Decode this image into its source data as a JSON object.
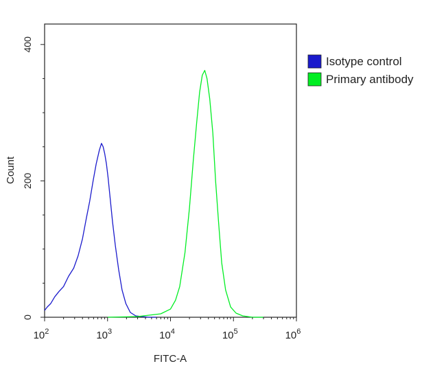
{
  "chart_data": {
    "type": "line",
    "title": "",
    "xlabel": "FITC-A",
    "ylabel": "Count",
    "x_scale": "log",
    "xlim": [
      100,
      1000000
    ],
    "ylim": [
      0,
      430
    ],
    "x_ticks": [
      {
        "value": 100,
        "base": "10",
        "exp": "2"
      },
      {
        "value": 1000,
        "base": "10",
        "exp": "3"
      },
      {
        "value": 10000,
        "base": "10",
        "exp": "4"
      },
      {
        "value": 100000,
        "base": "10",
        "exp": "5"
      },
      {
        "value": 1000000,
        "base": "10",
        "exp": "6"
      }
    ],
    "y_ticks": [
      {
        "value": 0,
        "label": "0"
      },
      {
        "value": 200,
        "label": "200"
      },
      {
        "value": 400,
        "label": "400"
      }
    ],
    "grid": false,
    "legend_position": "top-right",
    "series": [
      {
        "name": "Isotype control",
        "color": "#1a1acc",
        "x": [
          100,
          110,
          125,
          145,
          170,
          200,
          240,
          290,
          340,
          400,
          460,
          520,
          590,
          660,
          740,
          800,
          850,
          900,
          960,
          1020,
          1100,
          1200,
          1330,
          1500,
          1700,
          1950,
          2300,
          2800,
          3500,
          4500,
          6000
        ],
        "y": [
          10,
          15,
          20,
          30,
          38,
          45,
          60,
          72,
          90,
          115,
          145,
          170,
          200,
          225,
          245,
          255,
          250,
          240,
          225,
          205,
          175,
          140,
          105,
          70,
          40,
          20,
          7,
          2,
          1,
          0,
          0
        ]
      },
      {
        "name": "Primary antibody",
        "color": "#00ee22",
        "x": [
          1000,
          3000,
          7000,
          10000,
          12000,
          14000,
          17000,
          20000,
          23000,
          26000,
          29000,
          32000,
          35000,
          38000,
          42000,
          47000,
          52000,
          58000,
          65000,
          75000,
          90000,
          110000,
          140000,
          200000,
          300000
        ],
        "y": [
          0,
          1,
          5,
          12,
          25,
          45,
          95,
          160,
          230,
          285,
          330,
          355,
          362,
          350,
          320,
          270,
          200,
          140,
          80,
          40,
          15,
          6,
          2,
          0,
          0
        ]
      }
    ]
  }
}
